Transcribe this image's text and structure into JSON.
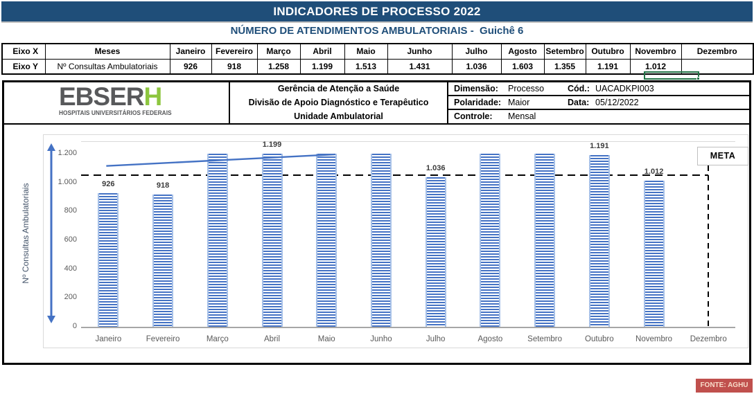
{
  "app": {
    "title": "INDICADORES DE PROCESSO 2022",
    "subtitle": "NÚMERO DE ATENDIMENTOS AMBULATORIAIS -  Guichê 6"
  },
  "axis_table": {
    "col1": [
      "Eixo X",
      "Eixo Y"
    ],
    "col2": [
      "Meses",
      "Nº Consultas Ambulatoriais"
    ],
    "months": [
      "Janeiro",
      "Fevereiro",
      "Março",
      "Abril",
      "Maio",
      "Junho",
      "Julho",
      "Agosto",
      "Setembro",
      "Outubro",
      "Novembro",
      "Dezembro"
    ],
    "values": [
      "926",
      "918",
      "1.258",
      "1.199",
      "1.513",
      "1.431",
      "1.036",
      "1.603",
      "1.355",
      "1.191",
      "1.012",
      ""
    ]
  },
  "org_header": {
    "logo": {
      "main": "EBSER",
      "accent": "H",
      "tagline": "HOSPITAIS UNIVERSITÁRIOS FEDERAIS"
    },
    "center_lines": [
      "Gerência de Atenção a Saúde",
      "Divisão de Apoio Diagnóstico e Terapêutico",
      "Unidade Ambulatorial"
    ],
    "fields": {
      "dimensao_label": "Dimensão:",
      "dimensao_value": "Processo",
      "cod_label": "Cód.:",
      "cod_value": "UACADKPI003",
      "polaridade_label": "Polaridade:",
      "polaridade_value": "Maior",
      "data_label": "Data:",
      "data_value": "05/12/2022",
      "controle_label": "Controle:",
      "controle_value": "Mensal"
    }
  },
  "chart_data": {
    "type": "bar",
    "title": "",
    "categories": [
      "Janeiro",
      "Fevereiro",
      "Março",
      "Abril",
      "Maio",
      "Junho",
      "Julho",
      "Agosto",
      "Setembro",
      "Outubro",
      "Novembro",
      "Dezembro"
    ],
    "values": [
      926,
      918,
      1258,
      1199,
      1513,
      1431,
      1036,
      1603,
      1355,
      1191,
      1012,
      null
    ],
    "bar_labels": [
      "926",
      "918",
      null,
      "1.199",
      null,
      null,
      "1.036",
      null,
      null,
      "1.191",
      "1.012",
      null
    ],
    "ylabel": "Nº Consultas Ambulatoriais",
    "xlabel": "",
    "ylim": [
      0,
      1200
    ],
    "ytick_values": [
      0,
      200,
      400,
      600,
      800,
      1000,
      1200
    ],
    "ytick_labels": [
      "0",
      "200",
      "400",
      "600",
      "800",
      "1.000",
      "1.200"
    ],
    "grid": false,
    "legend_position": "none",
    "bar_color": "#4472C4",
    "bar_pattern": "horizontal-stripes",
    "meta": {
      "label": "META",
      "value": 1050
    },
    "trendline": {
      "from_month": "Janeiro",
      "to_month": "Maio",
      "from_value": 1115,
      "to_value": 1195
    }
  },
  "footer": {
    "source": "FONTE: AGHU"
  },
  "colors": {
    "header_bg": "#1F4E79",
    "accent_blue": "#4472C4",
    "logo_gray": "#58595B",
    "logo_green": "#8DC63F",
    "selection_green": "#217346",
    "fonte_bg": "#C0504D"
  }
}
